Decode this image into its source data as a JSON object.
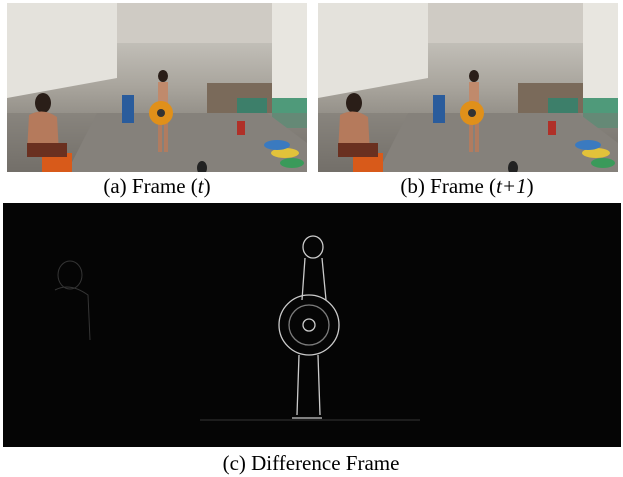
{
  "panels": [
    {
      "caption": {
        "before": "(a) Frame (",
        "italic": "t",
        "after": ")"
      }
    },
    {
      "caption": {
        "before": "(b) Frame (",
        "italic": "t+1",
        "after": ")"
      }
    },
    {
      "caption": {
        "before": "(c) Difference Frame"
      }
    }
  ]
}
